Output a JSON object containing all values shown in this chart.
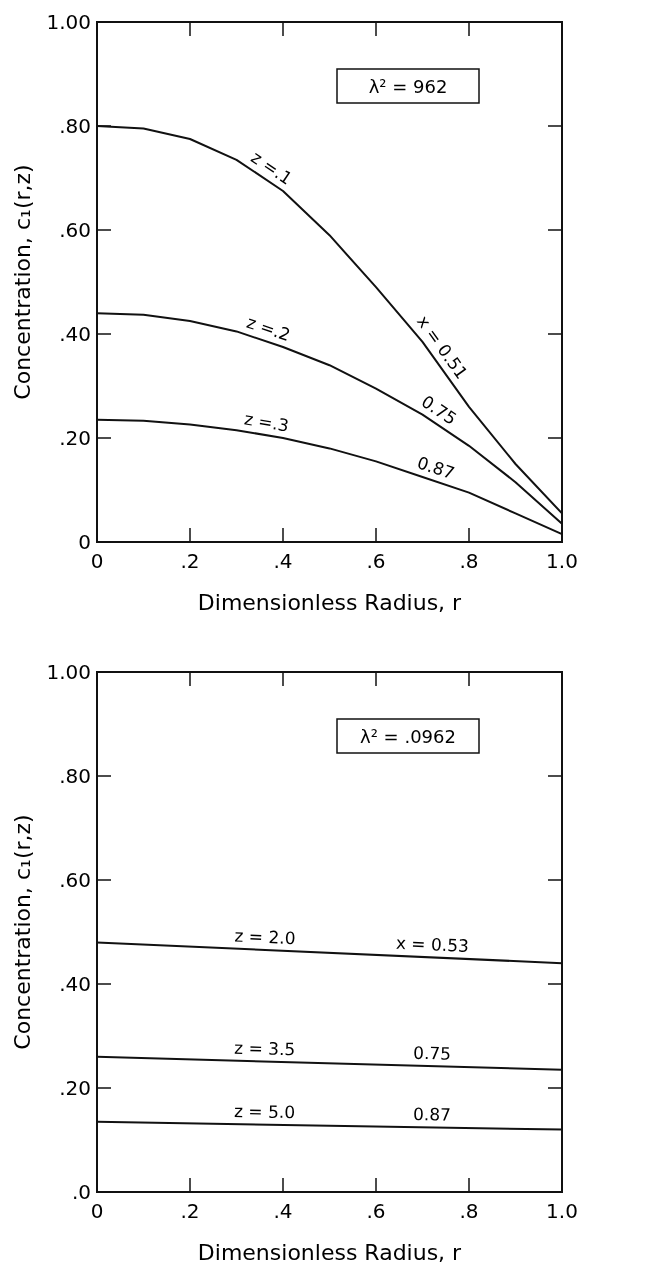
{
  "chart_data": [
    {
      "type": "line",
      "xlabel": "Dimensionless Radius,  r",
      "ylabel": "Concentration,  c₁(r,z)",
      "x": [
        0,
        0.1,
        0.2,
        0.3,
        0.4,
        0.5,
        0.6,
        0.7,
        0.8,
        0.9,
        1.0
      ],
      "series": [
        {
          "color": "#111111",
          "values": [
            0.8,
            0.795,
            0.775,
            0.735,
            0.675,
            0.59,
            0.49,
            0.385,
            0.26,
            0.15,
            0.055
          ]
        },
        {
          "color": "#111111",
          "values": [
            0.44,
            0.437,
            0.425,
            0.405,
            0.375,
            0.34,
            0.295,
            0.245,
            0.185,
            0.115,
            0.035
          ]
        },
        {
          "color": "#111111",
          "values": [
            0.235,
            0.233,
            0.226,
            0.215,
            0.2,
            0.18,
            0.155,
            0.125,
            0.095,
            0.055,
            0.015
          ]
        }
      ],
      "xlim": [
        0,
        1
      ],
      "ylim": [
        0,
        1
      ],
      "xticks": [
        0,
        {
          "value": 0.2,
          "label": ".2"
        },
        {
          "value": 0.4,
          "label": ".4"
        },
        {
          "value": 0.6,
          "label": ".6"
        },
        {
          "value": 0.8,
          "label": ".8"
        },
        {
          "value": 1,
          "label": "1.0"
        }
      ],
      "yticks": [
        0,
        {
          "value": 0.2,
          "label": ".20"
        },
        {
          "value": 0.4,
          "label": ".40"
        },
        {
          "value": 0.6,
          "label": ".60"
        },
        {
          "value": 0.8,
          "label": ".80"
        },
        {
          "value": 1,
          "label": "1.00"
        }
      ],
      "grid": false,
      "line_style": "solid",
      "marker": "none",
      "annotations": [
        "λ² = 962",
        "z =.1",
        "x = 0.51",
        "z =.2",
        "0.75",
        "z =.3",
        "0.87"
      ]
    },
    {
      "type": "line",
      "xlabel": "Dimensionless Radius,  r",
      "ylabel": "Concentration,  c₁(r,z)",
      "x": [
        0,
        1.0
      ],
      "series": [
        {
          "color": "#111111",
          "values": [
            0.48,
            0.44
          ]
        },
        {
          "color": "#111111",
          "values": [
            0.26,
            0.235
          ]
        },
        {
          "color": "#111111",
          "values": [
            0.135,
            0.12
          ]
        }
      ],
      "xlim": [
        0,
        1
      ],
      "ylim": [
        0,
        1
      ],
      "xticks": [
        0,
        {
          "value": 0.2,
          "label": ".2"
        },
        {
          "value": 0.4,
          "label": ".4"
        },
        {
          "value": 0.6,
          "label": ".6"
        },
        {
          "value": 0.8,
          "label": ".8"
        },
        {
          "value": 1,
          "label": "1.0"
        }
      ],
      "yticks": [
        {
          "value": 0,
          "label": ".0"
        },
        {
          "value": 0.2,
          "label": ".20"
        },
        {
          "value": 0.4,
          "label": ".40"
        },
        {
          "value": 0.6,
          "label": ".60"
        },
        {
          "value": 0.8,
          "label": ".80"
        },
        {
          "value": 1,
          "label": "1.00"
        }
      ],
      "grid": false,
      "line_style": "solid",
      "marker": "none",
      "annotations": [
        "λ² = .0962",
        "z = 2.0",
        "x = 0.53",
        "z = 3.5",
        "0.75",
        "z = 5.0",
        "0.87"
      ]
    }
  ]
}
